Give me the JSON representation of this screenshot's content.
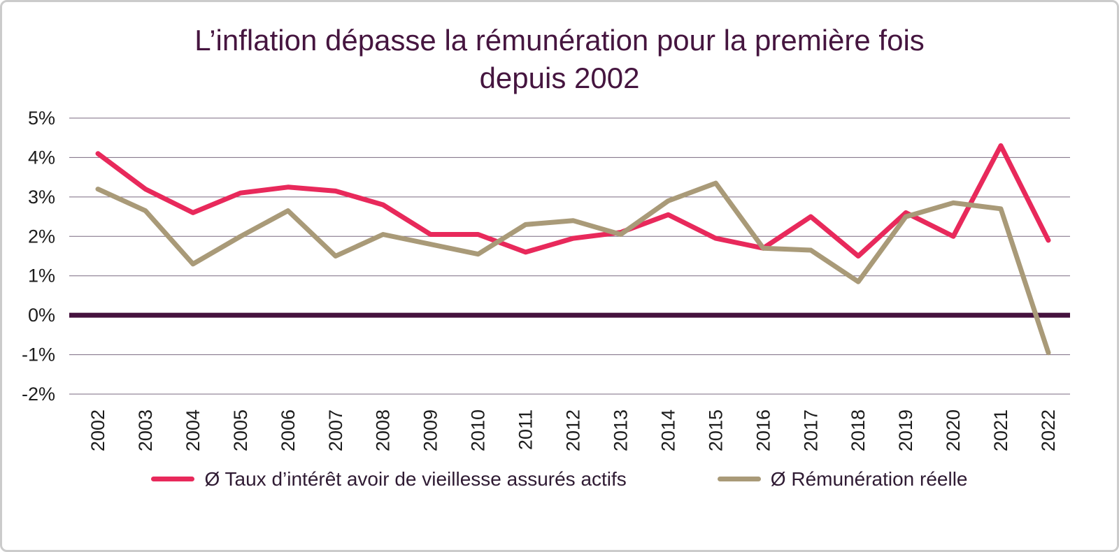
{
  "chart_data": {
    "type": "line",
    "title": "L’inflation dépasse la rémunération pour la première fois depuis 2002",
    "title_lines": [
      "L’inflation dépasse la rémunération pour la première fois",
      "depuis 2002"
    ],
    "x": [
      2002,
      2003,
      2004,
      2005,
      2006,
      2007,
      2008,
      2009,
      2010,
      2011,
      2012,
      2013,
      2014,
      2015,
      2016,
      2017,
      2018,
      2019,
      2020,
      2021,
      2022
    ],
    "series": [
      {
        "name": "Ø Taux d’intérêt avoir de vieillesse assurés actifs",
        "color": "#E8295B",
        "values": [
          4.1,
          3.2,
          2.6,
          3.1,
          3.25,
          3.15,
          2.8,
          2.05,
          2.05,
          1.6,
          1.95,
          2.1,
          2.55,
          1.95,
          1.7,
          2.5,
          1.5,
          2.6,
          2.0,
          4.3,
          1.9
        ]
      },
      {
        "name": "Ø Rémunération réelle",
        "color": "#A99A78",
        "values": [
          3.2,
          2.65,
          1.3,
          2.0,
          2.65,
          1.5,
          2.05,
          1.8,
          1.55,
          2.3,
          2.4,
          2.05,
          2.9,
          3.35,
          1.7,
          1.65,
          0.85,
          2.5,
          2.85,
          2.7,
          -0.95
        ]
      }
    ],
    "ylim": [
      -2,
      5
    ],
    "ytick_labels": [
      "5%",
      "4%",
      "3%",
      "2%",
      "1%",
      "0%",
      "-1%",
      "-2%"
    ],
    "xlabel": "",
    "ylabel": "",
    "grid": true,
    "zero_line": true,
    "legend_position": "bottom"
  },
  "colors": {
    "title": "#45153F",
    "axis_text": "#1d1d1d",
    "legend_text": "#2f1b33",
    "grid": "#7A6A80",
    "zero_line": "#45123E",
    "frame_border": "#cbcbcb",
    "background": "#FFFFFF"
  }
}
